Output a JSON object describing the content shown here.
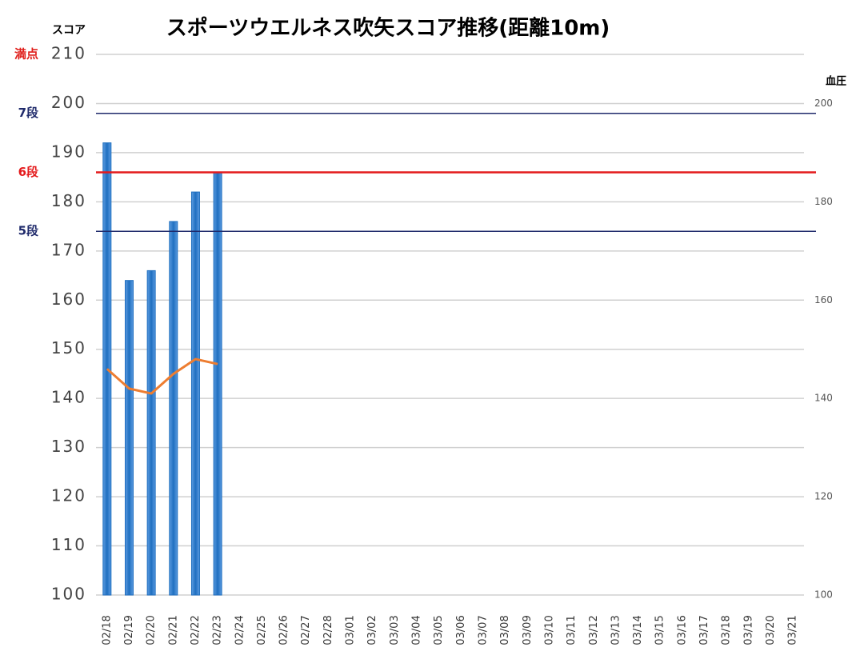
{
  "chart_data": {
    "type": "bar",
    "title": "スポーツウエルネス吹矢スコア推移(距離10m)",
    "y_label": "スコア",
    "y2_label": "血圧",
    "categories": [
      "02/18",
      "02/19",
      "02/20",
      "02/21",
      "02/22",
      "02/23",
      "02/24",
      "02/25",
      "02/26",
      "02/27",
      "02/28",
      "03/01",
      "03/02",
      "03/03",
      "03/04",
      "03/05",
      "03/06",
      "03/07",
      "03/08",
      "03/09",
      "03/10",
      "03/11",
      "03/12",
      "03/13",
      "03/14",
      "03/15",
      "03/16",
      "03/17",
      "03/18",
      "03/19",
      "03/20",
      "03/21"
    ],
    "series": [
      {
        "type": "bar",
        "color": "#1f6fc0",
        "values": [
          192,
          164,
          166,
          176,
          182,
          186,
          null,
          null,
          null,
          null,
          null,
          null,
          null,
          null,
          null,
          null,
          null,
          null,
          null,
          null,
          null,
          null,
          null,
          null,
          null,
          null,
          null,
          null,
          null,
          null,
          null,
          null
        ]
      },
      {
        "type": "line",
        "axis": "y2",
        "color": "#ed7d31",
        "values": [
          146,
          142,
          141,
          145,
          148,
          147,
          null,
          null,
          null,
          null,
          null,
          null,
          null,
          null,
          null,
          null,
          null,
          null,
          null,
          null,
          null,
          null,
          null,
          null,
          null,
          null,
          null,
          null,
          null,
          null,
          null,
          null
        ]
      }
    ],
    "ylim": [
      100,
      210
    ],
    "yticks": [
      100,
      110,
      120,
      130,
      140,
      150,
      160,
      170,
      180,
      190,
      200,
      210
    ],
    "y2lim": [
      100,
      210
    ],
    "y2ticks": [
      100,
      120,
      140,
      160,
      180,
      200
    ],
    "grid": true,
    "reference_lines": [
      {
        "label": "満点",
        "value": 210,
        "color": "#e0201c",
        "line": false
      },
      {
        "label": "7段",
        "value": 198,
        "color": "#1f2a6b",
        "line": true
      },
      {
        "label": "6段",
        "value": 186,
        "color": "#e41a1c",
        "line": true
      },
      {
        "label": "5段",
        "value": 174,
        "color": "#1f2a6b",
        "line": true
      }
    ]
  }
}
